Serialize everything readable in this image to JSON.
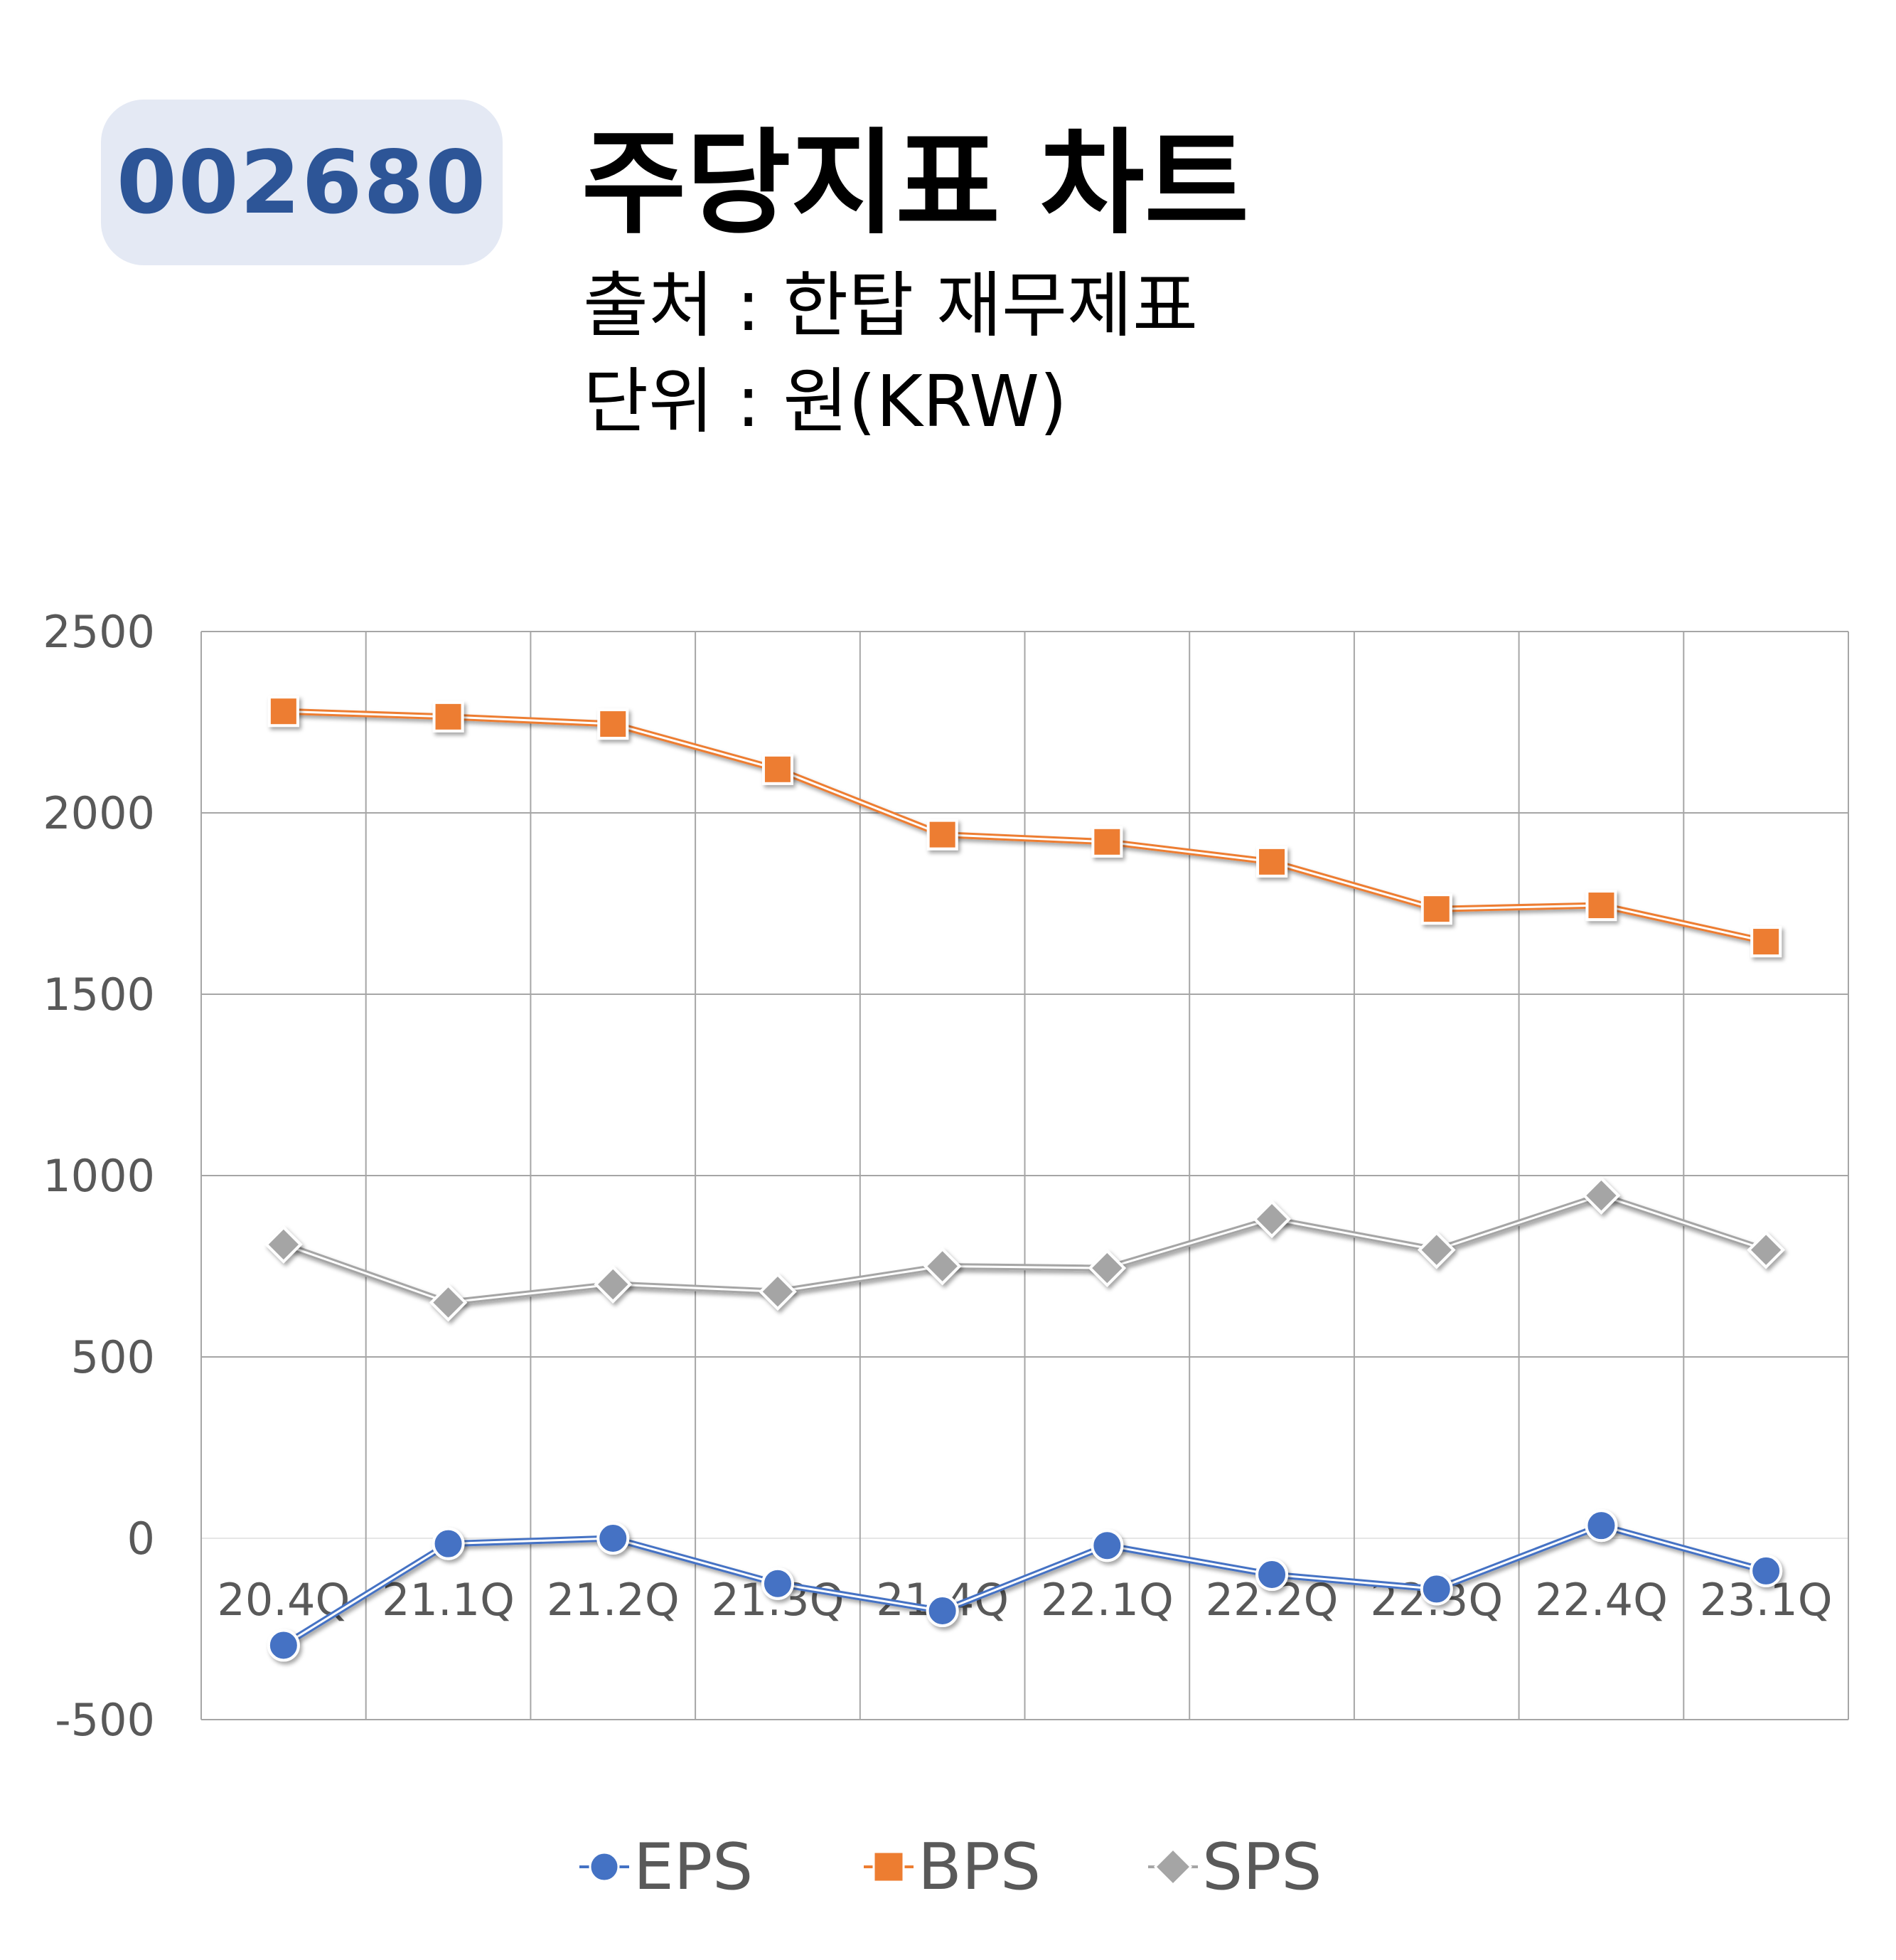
{
  "header": {
    "ticker": "002680",
    "title": "주당지표 차트",
    "source": "출처 : 한탑 재무제표",
    "unit": "단위 : 원(KRW)"
  },
  "colors": {
    "badge_bg": "#e4e9f4",
    "badge_text": "#2d5597",
    "eps": "#4472c4",
    "bps": "#ed7d31",
    "sps": "#a5a5a5",
    "grid": "#a6a6a6",
    "tick_text": "#595959"
  },
  "chart_data": {
    "type": "line",
    "title": "주당지표 차트",
    "xlabel": "",
    "ylabel": "",
    "ylim": [
      -500,
      2500
    ],
    "yticks": [
      2500,
      2000,
      1500,
      1000,
      500,
      0,
      -500
    ],
    "categories": [
      "20.4Q",
      "21.1Q",
      "21.2Q",
      "21.3Q",
      "21.4Q",
      "22.1Q",
      "22.2Q",
      "22.3Q",
      "22.4Q",
      "23.1Q"
    ],
    "grid": true,
    "legend_position": "bottom",
    "series": [
      {
        "name": "EPS",
        "marker": "circle",
        "color": "#4472c4",
        "values": [
          -295,
          -15,
          0,
          -125,
          -200,
          -20,
          -100,
          -140,
          35,
          -90
        ]
      },
      {
        "name": "BPS",
        "marker": "square",
        "color": "#ed7d31",
        "values": [
          2280,
          2265,
          2245,
          2120,
          1940,
          1920,
          1865,
          1735,
          1745,
          1645
        ]
      },
      {
        "name": "SPS",
        "marker": "diamond",
        "color": "#a5a5a5",
        "values": [
          810,
          650,
          700,
          680,
          750,
          745,
          880,
          795,
          945,
          795
        ]
      }
    ]
  }
}
